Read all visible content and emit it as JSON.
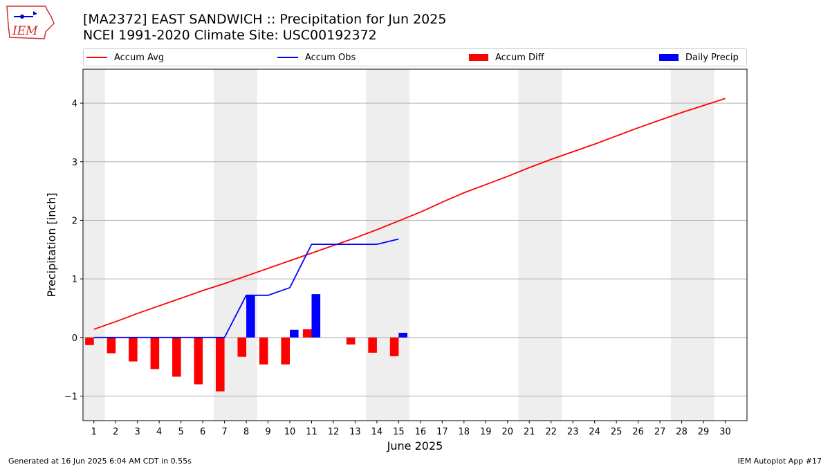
{
  "title_line1": "[MA2372] EAST SANDWICH :: Precipitation for Jun 2025",
  "title_line2": "NCEI 1991-2020 Climate Site: USC00192372",
  "logo_text": "IEM",
  "footer_left": "Generated at 16 Jun 2025 6:04 AM CDT in 0.55s",
  "footer_right": "IEM Autoplot App #17",
  "colors": {
    "avg": "#ff0000",
    "obs": "#0000ff",
    "diff": "#ff0000",
    "daily": "#0000ff",
    "weekend": "#eeeeee",
    "grid": "#b0b0b0"
  },
  "legend": [
    {
      "label": "Accum Avg",
      "kind": "line",
      "color": "#ff0000"
    },
    {
      "label": "Accum Obs",
      "kind": "line",
      "color": "#0000ff"
    },
    {
      "label": "Accum Diff",
      "kind": "box",
      "color": "#ff0000"
    },
    {
      "label": "Daily Precip",
      "kind": "box",
      "color": "#0000ff"
    }
  ],
  "chart_data": {
    "type": "bar",
    "xlabel": "June 2025",
    "ylabel": "Precipitation [inch]",
    "ylim": [
      -1.42,
      4.58
    ],
    "xlim": [
      0.5,
      31.0
    ],
    "yticks": [
      -1,
      0,
      1,
      2,
      3,
      4
    ],
    "ytick_labels": [
      "−1",
      "0",
      "1",
      "2",
      "3",
      "4"
    ],
    "days": [
      1,
      2,
      3,
      4,
      5,
      6,
      7,
      8,
      9,
      10,
      11,
      12,
      13,
      14,
      15,
      16,
      17,
      18,
      19,
      20,
      21,
      22,
      23,
      24,
      25,
      26,
      27,
      28,
      29,
      30
    ],
    "weekend_spans": [
      [
        0.5,
        1.5
      ],
      [
        6.5,
        8.5
      ],
      [
        13.5,
        15.5
      ],
      [
        20.5,
        22.5
      ],
      [
        27.5,
        29.5
      ]
    ],
    "grid": "y",
    "legend_position": "top",
    "series": [
      {
        "name": "Accum Avg",
        "type": "line",
        "x": [
          1,
          2,
          3,
          4,
          5,
          6,
          7,
          8,
          9,
          10,
          11,
          12,
          13,
          14,
          15,
          16,
          17,
          18,
          19,
          20,
          21,
          22,
          23,
          24,
          25,
          26,
          27,
          28,
          29,
          30
        ],
        "values": [
          0.14,
          0.27,
          0.41,
          0.54,
          0.67,
          0.8,
          0.92,
          1.05,
          1.18,
          1.31,
          1.44,
          1.57,
          1.7,
          1.84,
          1.99,
          2.14,
          2.31,
          2.47,
          2.61,
          2.75,
          2.9,
          3.04,
          3.17,
          3.3,
          3.44,
          3.58,
          3.71,
          3.84,
          3.96,
          4.08
        ]
      },
      {
        "name": "Accum Obs",
        "type": "line",
        "x": [
          1,
          2,
          3,
          4,
          5,
          6,
          7,
          8,
          9,
          10,
          11,
          12,
          13,
          14,
          15
        ],
        "values": [
          0,
          0,
          0,
          0,
          0,
          0,
          0,
          0.72,
          0.72,
          0.85,
          1.59,
          1.59,
          1.59,
          1.59,
          1.68
        ]
      },
      {
        "name": "Accum Diff",
        "type": "bar",
        "x": [
          1,
          2,
          3,
          4,
          5,
          6,
          7,
          8,
          9,
          10,
          11,
          12,
          13,
          14,
          15
        ],
        "values": [
          -0.13,
          -0.27,
          -0.41,
          -0.54,
          -0.67,
          -0.8,
          -0.92,
          -0.33,
          -0.46,
          -0.46,
          0.14,
          0,
          -0.12,
          -0.26,
          -0.32
        ]
      },
      {
        "name": "Daily Precip",
        "type": "bar",
        "x": [
          1,
          2,
          3,
          4,
          5,
          6,
          7,
          8,
          9,
          10,
          11,
          12,
          13,
          14,
          15
        ],
        "values": [
          0,
          0,
          0,
          0,
          0,
          0,
          0,
          0.72,
          0,
          0.13,
          0.74,
          0,
          0,
          0,
          0.08
        ]
      }
    ]
  }
}
